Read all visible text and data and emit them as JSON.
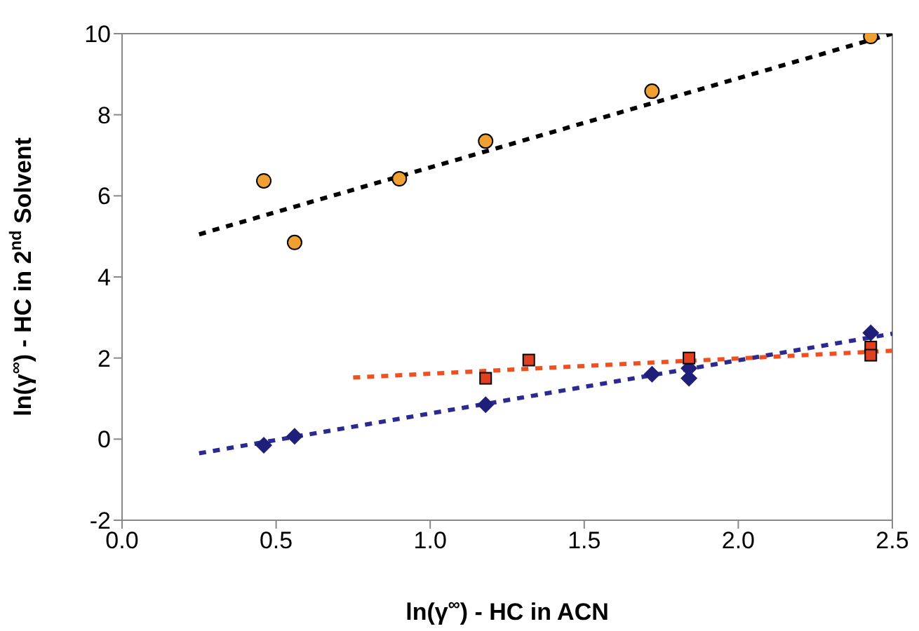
{
  "chart_data": {
    "type": "scatter",
    "xlabel": "ln(γ$^{∞}$) - HC in ACN",
    "ylabel": "ln(γ$^{∞}$) - HC in 2$^{nd}$ Solvent",
    "xlim": [
      0,
      2.5
    ],
    "xticks": [
      {
        "value": 0,
        "label": "0.0"
      },
      {
        "value": 0.5,
        "label": "0.5"
      },
      {
        "value": 1,
        "label": "1.0"
      },
      {
        "value": 1.5,
        "label": "1.5"
      },
      {
        "value": 2,
        "label": "2.0"
      },
      {
        "value": 2.5,
        "label": "2.5"
      }
    ],
    "ylim": [
      -2,
      10
    ],
    "yticks": [
      -2,
      0,
      2,
      4,
      6,
      8,
      10
    ],
    "series": [
      {
        "type": "line",
        "color": "#000000",
        "x": [
          0.25,
          2.5
        ],
        "values": [
          5.05,
          10.0
        ],
        "marker": "none",
        "line_style": "dashed"
      },
      {
        "type": "line",
        "color": "#2a2a90",
        "x": [
          0.25,
          2.5
        ],
        "values": [
          -0.35,
          2.6
        ],
        "marker": "none",
        "line_style": "dashed"
      },
      {
        "type": "line",
        "color": "#f05020",
        "x": [
          0.75,
          2.5
        ],
        "values": [
          1.52,
          2.18
        ],
        "marker": "none",
        "line_style": "dashed"
      },
      {
        "color": "#f0a030",
        "x": [
          0.46,
          0.56,
          0.9,
          1.18,
          1.72,
          2.43
        ],
        "values": [
          6.37,
          4.85,
          6.42,
          7.35,
          8.58,
          9.93
        ],
        "marker": "circle"
      },
      {
        "color": "#1f1f7a",
        "x": [
          0.46,
          0.56,
          1.18,
          1.72,
          1.84,
          1.84,
          2.43
        ],
        "values": [
          -0.15,
          0.07,
          0.85,
          1.6,
          1.5,
          1.75,
          2.62
        ],
        "marker": "diamond"
      },
      {
        "color": "#e04020",
        "x": [
          1.18,
          1.32,
          1.84,
          2.43,
          2.43
        ],
        "values": [
          1.5,
          1.95,
          2.0,
          2.27,
          2.07
        ],
        "marker": "square"
      }
    ]
  }
}
